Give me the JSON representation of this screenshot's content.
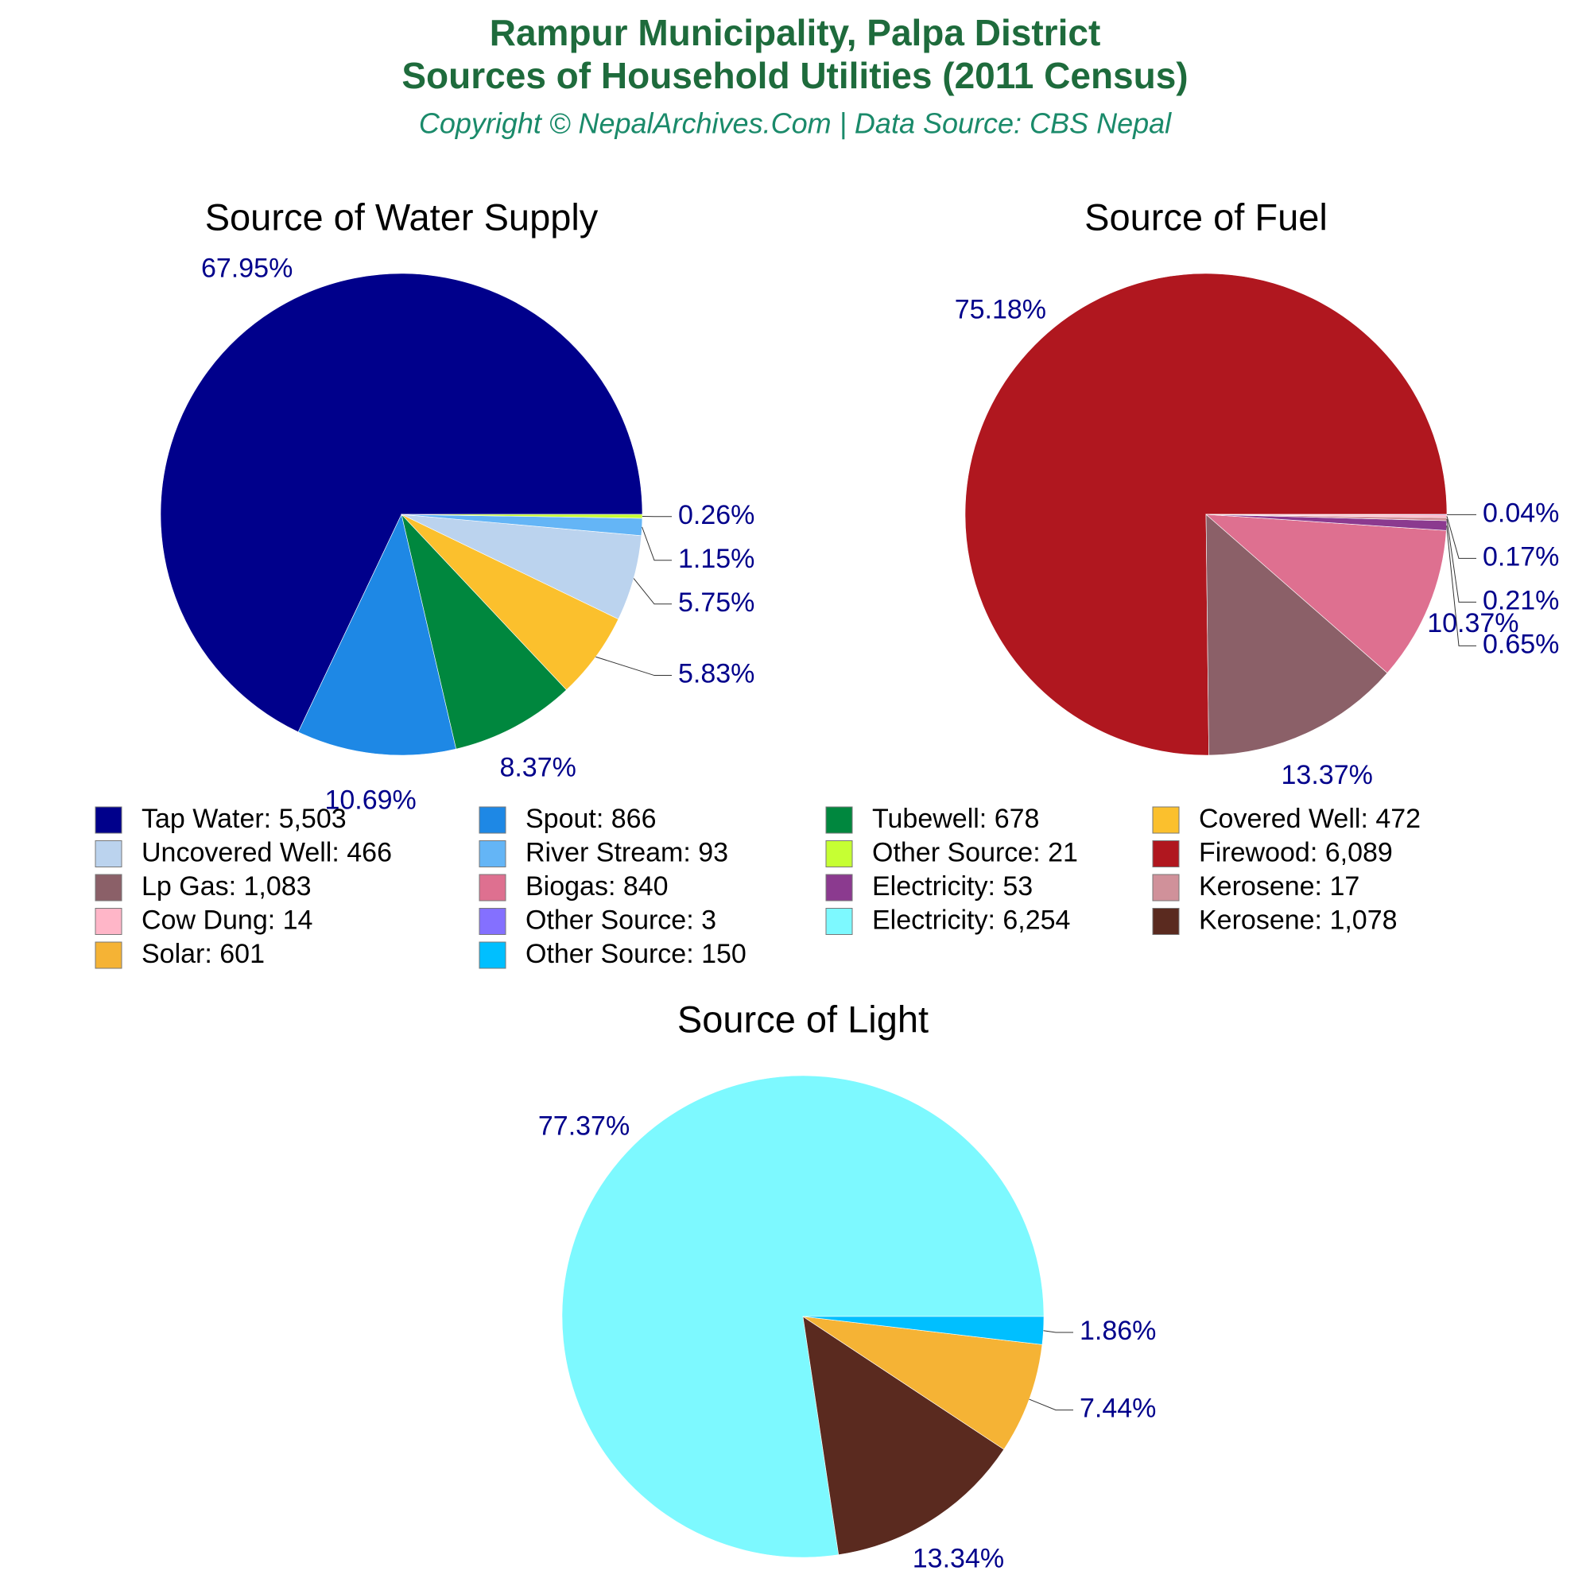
{
  "header": {
    "title": [
      "Rampur Municipality, Palpa District",
      "Sources of Household Utilities (2011 Census)"
    ],
    "subtitle": "Copyright © NepalArchives.Com | Data Source: CBS Nepal"
  },
  "chart_data": [
    {
      "type": "pie",
      "title": "Source of Water Supply",
      "categories": [
        "Tap Water: 5,503",
        "Spout: 866",
        "Tubewell: 678",
        "Covered Well: 472",
        "Uncovered Well: 466",
        "River Stream: 93",
        "Other Source: 21"
      ],
      "values": [
        67.95,
        10.69,
        8.37,
        5.83,
        5.75,
        1.15,
        0.26
      ],
      "value_labels": [
        "67.95%",
        "10.69%",
        "8.37%",
        "5.83%",
        "5.75%",
        "1.15%",
        "0.26%"
      ],
      "colors": [
        "#00008b",
        "#1e88e5",
        "#00873e",
        "#fbc02d",
        "#bbd3ee",
        "#64b5f6",
        "#c6ff33"
      ]
    },
    {
      "type": "pie",
      "title": "Source of Fuel",
      "categories": [
        "Firewood: 6,089",
        "Lp Gas: 1,083",
        "Biogas: 840",
        "Electricity: 53",
        "Kerosene: 17",
        "Cow Dung: 14",
        "Other Source: 3"
      ],
      "values": [
        75.18,
        13.37,
        10.37,
        0.65,
        0.21,
        0.17,
        0.04
      ],
      "value_labels": [
        "75.18%",
        "13.37%",
        "10.37%",
        "0.65%",
        "0.21%",
        "0.17%",
        "0.04%"
      ],
      "colors": [
        "#b0171f",
        "#8b6068",
        "#de7090",
        "#8b3a8f",
        "#d0919a",
        "#ffb6c8",
        "#8470ff"
      ]
    },
    {
      "type": "pie",
      "title": "Source of Light",
      "categories": [
        "Electricity: 6,254",
        "Kerosene: 1,078",
        "Solar: 601",
        "Other Source: 150"
      ],
      "values": [
        77.37,
        13.34,
        7.44,
        1.86
      ],
      "value_labels": [
        "77.37%",
        "13.34%",
        "7.44%",
        "1.86%"
      ],
      "colors": [
        "#7df9ff",
        "#5a2a1f",
        "#f5b335",
        "#00bfff"
      ]
    }
  ]
}
